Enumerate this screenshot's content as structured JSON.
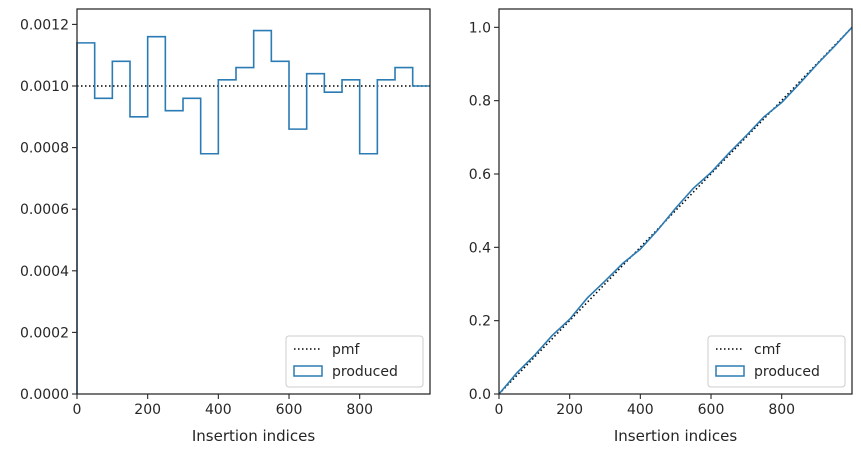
{
  "chart_data": [
    {
      "type": "step",
      "xlabel": "Insertion indices",
      "ylabel": "",
      "xlim": [
        0,
        999
      ],
      "ylim": [
        0,
        0.00125
      ],
      "x_ticks": [
        0,
        200,
        400,
        600,
        800
      ],
      "x_tick_labels": [
        "0",
        "200",
        "400",
        "600",
        "800"
      ],
      "y_ticks": [
        0,
        0.0002,
        0.0004,
        0.0006,
        0.0008,
        0.001,
        0.0012
      ],
      "y_tick_labels": [
        "0.0000",
        "0.0002",
        "0.0004",
        "0.0006",
        "0.0008",
        "0.0010",
        "0.0012"
      ],
      "legend_position": "lower right",
      "grid": false,
      "series": [
        {
          "name": "pmf",
          "style": "dotted",
          "color": "#000000",
          "x": [
            0,
            999
          ],
          "values": [
            0.001,
            0.001
          ]
        },
        {
          "name": "produced",
          "style": "step-histogram",
          "color": "#2b7bb4",
          "bin_edges": [
            0,
            50,
            100,
            150,
            200,
            250,
            300,
            350,
            400,
            450,
            500,
            550,
            600,
            650,
            700,
            750,
            800,
            850,
            900,
            950,
            999
          ],
          "values": [
            0.00114,
            0.00096,
            0.00108,
            0.0009,
            0.00116,
            0.00092,
            0.00096,
            0.00078,
            0.00102,
            0.00106,
            0.00118,
            0.00108,
            0.00086,
            0.00104,
            0.00098,
            0.00102,
            0.00078,
            0.00102,
            0.00106,
            0.001
          ]
        }
      ]
    },
    {
      "type": "line",
      "xlabel": "Insertion indices",
      "ylabel": "",
      "xlim": [
        0,
        999
      ],
      "ylim": [
        0,
        1.05
      ],
      "x_ticks": [
        0,
        200,
        400,
        600,
        800
      ],
      "x_tick_labels": [
        "0",
        "200",
        "400",
        "600",
        "800"
      ],
      "y_ticks": [
        0,
        0.2,
        0.4,
        0.6,
        0.8,
        1.0
      ],
      "y_tick_labels": [
        "0.0",
        "0.2",
        "0.4",
        "0.6",
        "0.8",
        "1.0"
      ],
      "legend_position": "lower right",
      "grid": false,
      "series": [
        {
          "name": "cmf",
          "style": "dotted",
          "color": "#000000",
          "x": [
            0,
            999
          ],
          "values": [
            0,
            1.0
          ]
        },
        {
          "name": "produced",
          "style": "solid",
          "color": "#2b7bb4",
          "x": [
            0,
            50,
            100,
            150,
            200,
            250,
            300,
            350,
            400,
            450,
            500,
            550,
            600,
            650,
            700,
            750,
            800,
            850,
            900,
            950,
            999
          ],
          "values": [
            0,
            0.057,
            0.105,
            0.159,
            0.204,
            0.262,
            0.308,
            0.356,
            0.395,
            0.448,
            0.507,
            0.561,
            0.604,
            0.656,
            0.705,
            0.756,
            0.795,
            0.846,
            0.899,
            0.949,
            1.0
          ]
        }
      ]
    }
  ]
}
